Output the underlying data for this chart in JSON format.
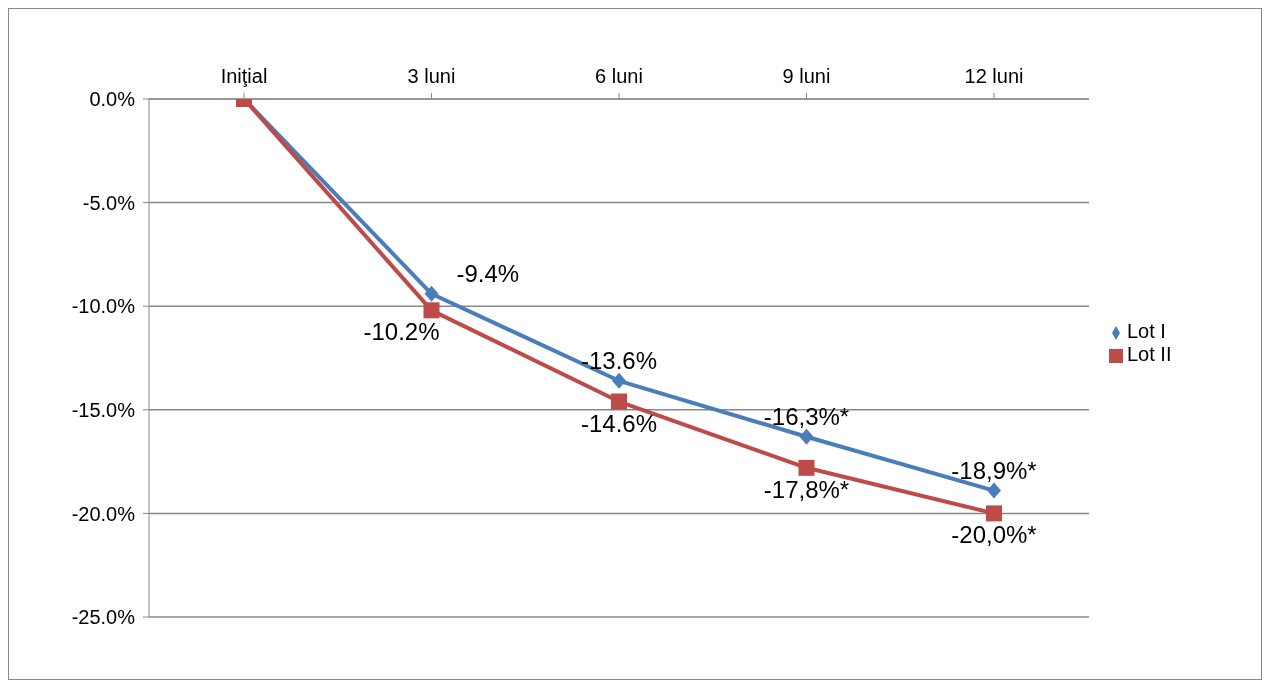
{
  "chart_data": {
    "type": "line",
    "categories": [
      "Iniţial",
      "3 luni",
      "6 luni",
      "9 luni",
      "12 luni"
    ],
    "series": [
      {
        "name": "Lot I",
        "color": "#4a7ebb",
        "marker": "diamond",
        "values": [
          0,
          -9.4,
          -13.6,
          -16.3,
          -18.9
        ],
        "value_labels": [
          null,
          "-9.4%",
          "-13.6%",
          "-16,3%*",
          "-18,9%*"
        ]
      },
      {
        "name": "Lot II",
        "color": "#be4b48",
        "marker": "square",
        "values": [
          0,
          -10.2,
          -14.6,
          -17.8,
          -20.0
        ],
        "value_labels": [
          null,
          "-10.2%",
          "-14.6%",
          "-17,8%*",
          "-20,0%*"
        ]
      }
    ],
    "ylim": [
      -25,
      0
    ],
    "yticks": [
      {
        "value": 0,
        "label": "0.0%"
      },
      {
        "value": -5,
        "label": "-5.0%"
      },
      {
        "value": -10,
        "label": "-10.0%"
      },
      {
        "value": -15,
        "label": "-15.0%"
      },
      {
        "value": -20,
        "label": "-20.0%"
      },
      {
        "value": -25,
        "label": "-25.0%"
      }
    ],
    "grid": "y",
    "legend": "right"
  }
}
